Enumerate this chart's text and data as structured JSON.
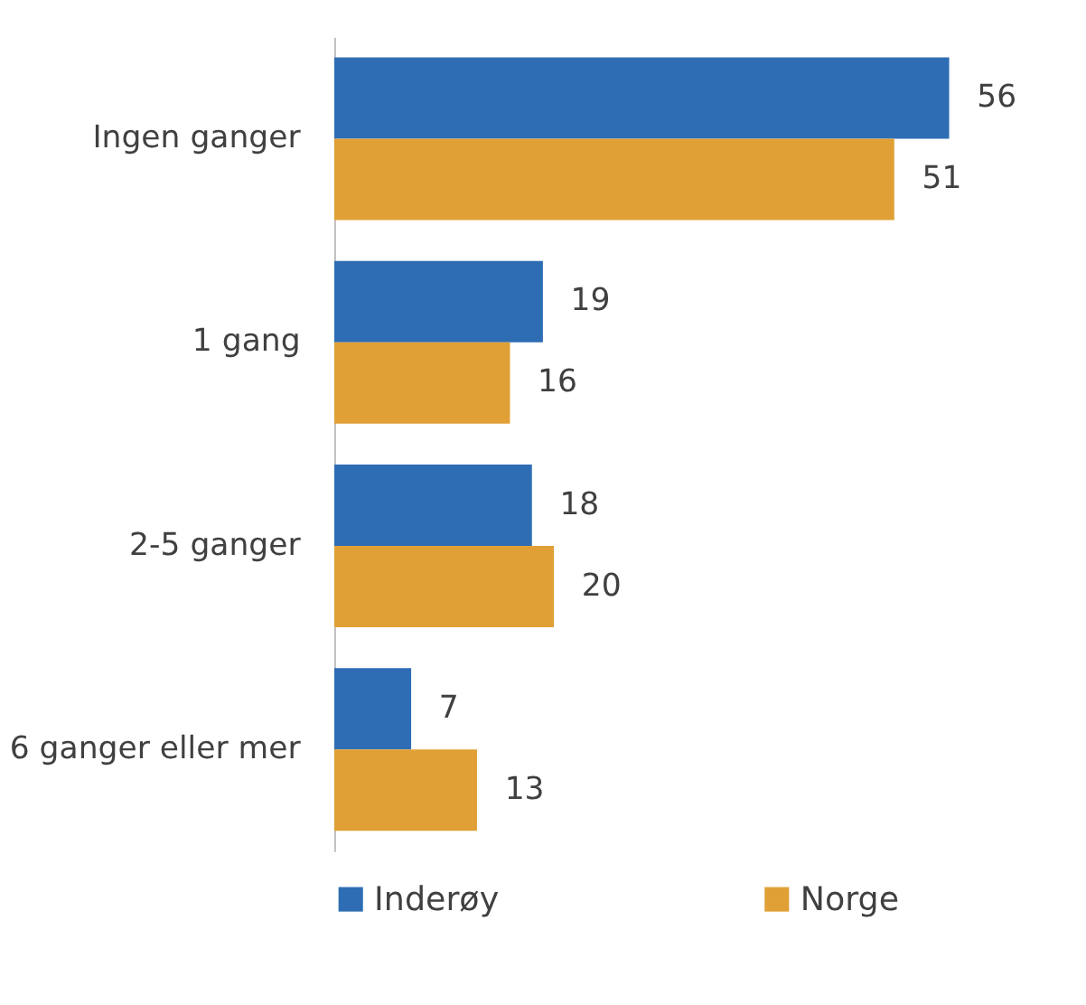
{
  "chart_data": {
    "type": "bar",
    "orientation": "horizontal",
    "categories": [
      "Ingen ganger",
      "1 gang",
      "2-5 ganger",
      "6 ganger eller mer"
    ],
    "series": [
      {
        "name": "Inderøy",
        "color": "#2e6db4",
        "values": [
          56,
          19,
          18,
          7
        ]
      },
      {
        "name": "Norge",
        "color": "#e0a035",
        "values": [
          51,
          16,
          20,
          13
        ]
      }
    ],
    "data_labels": true,
    "legend": "bottom",
    "grid": false,
    "tick_labels": "y"
  }
}
